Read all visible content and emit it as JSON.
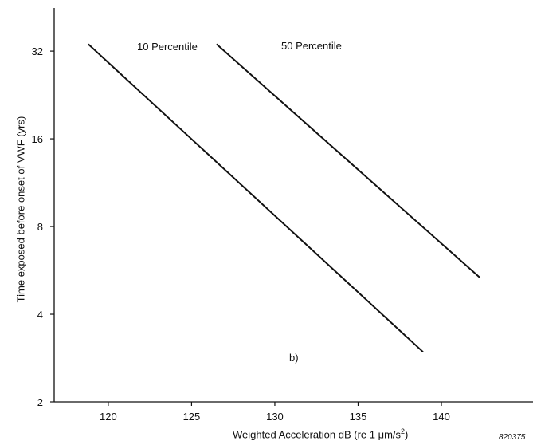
{
  "chart_data": {
    "type": "line",
    "title": "",
    "xlabel": "Weighted Acceleration dB (re 1 μm/s²)",
    "ylabel": "Time exposed before onset of VWF (yrs)",
    "y_scale": "log2",
    "xlim": [
      113.5,
      145.5
    ],
    "ylim": [
      2,
      45
    ],
    "x_ticks": [
      120,
      125,
      130,
      135,
      140
    ],
    "y_ticks": [
      2,
      4,
      8,
      16,
      32
    ],
    "grid": false,
    "panel_label": "b)",
    "figure_id": "820375",
    "series": [
      {
        "name": "10 Percentile",
        "x": [
          118.8,
          138.9
        ],
        "y": [
          33.8,
          2.97
        ]
      },
      {
        "name": "50 Percentile",
        "x": [
          126.5,
          142.3
        ],
        "y": [
          33.8,
          5.35
        ]
      }
    ]
  }
}
